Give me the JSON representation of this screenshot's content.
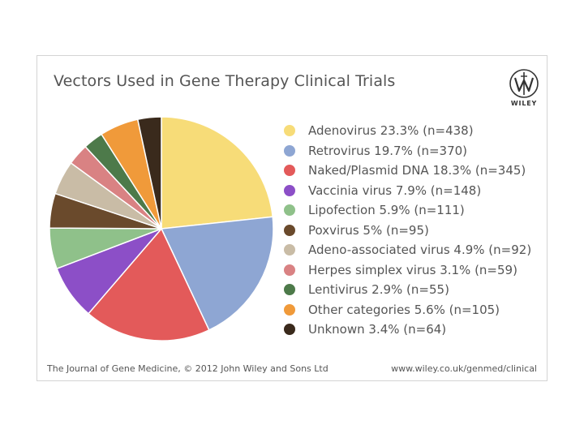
{
  "chart_data": {
    "type": "pie",
    "title": "Vectors Used in Gene Therapy Clinical Trials",
    "slices": [
      {
        "label": "Adenovirus 23.3% (n=438)",
        "value": 23.3,
        "n": 438,
        "color": "#f7dc78"
      },
      {
        "label": "Retrovirus 19.7% (n=370)",
        "value": 19.7,
        "n": 370,
        "color": "#8ea6d3"
      },
      {
        "label": "Naked/Plasmid DNA 18.3% (n=345)",
        "value": 18.3,
        "n": 345,
        "color": "#e35a5a"
      },
      {
        "label": "Vaccinia virus 7.9% (n=148)",
        "value": 7.9,
        "n": 148,
        "color": "#8c4fc7"
      },
      {
        "label": "Lipofection 5.9% (n=111)",
        "value": 5.9,
        "n": 111,
        "color": "#8fc18a"
      },
      {
        "label": "Poxvirus 5% (n=95)",
        "value": 5.0,
        "n": 95,
        "color": "#6a4a2c"
      },
      {
        "label": "Adeno-associated virus 4.9% (n=92)",
        "value": 4.9,
        "n": 92,
        "color": "#c9bca6"
      },
      {
        "label": "Herpes simplex virus 3.1% (n=59)",
        "value": 3.1,
        "n": 59,
        "color": "#d98283"
      },
      {
        "label": "Lentivirus 2.9% (n=55)",
        "value": 2.9,
        "n": 55,
        "color": "#4d7a4a"
      },
      {
        "label": "Other categories 5.6% (n=105)",
        "value": 5.6,
        "n": 105,
        "color": "#f09a3a"
      },
      {
        "label": "Unknown 3.4% (n=64)",
        "value": 3.4,
        "n": 64,
        "color": "#3a2a1c"
      }
    ],
    "legend_position": "right",
    "start_angle_deg": 0,
    "direction": "clockwise"
  },
  "logo": {
    "text": "WILEY",
    "icon": "wiley-w-logo"
  },
  "footer": {
    "left": "The Journal of Gene Medicine, © 2012 John Wiley and Sons Ltd",
    "right": "www.wiley.co.uk/genmed/clinical"
  }
}
